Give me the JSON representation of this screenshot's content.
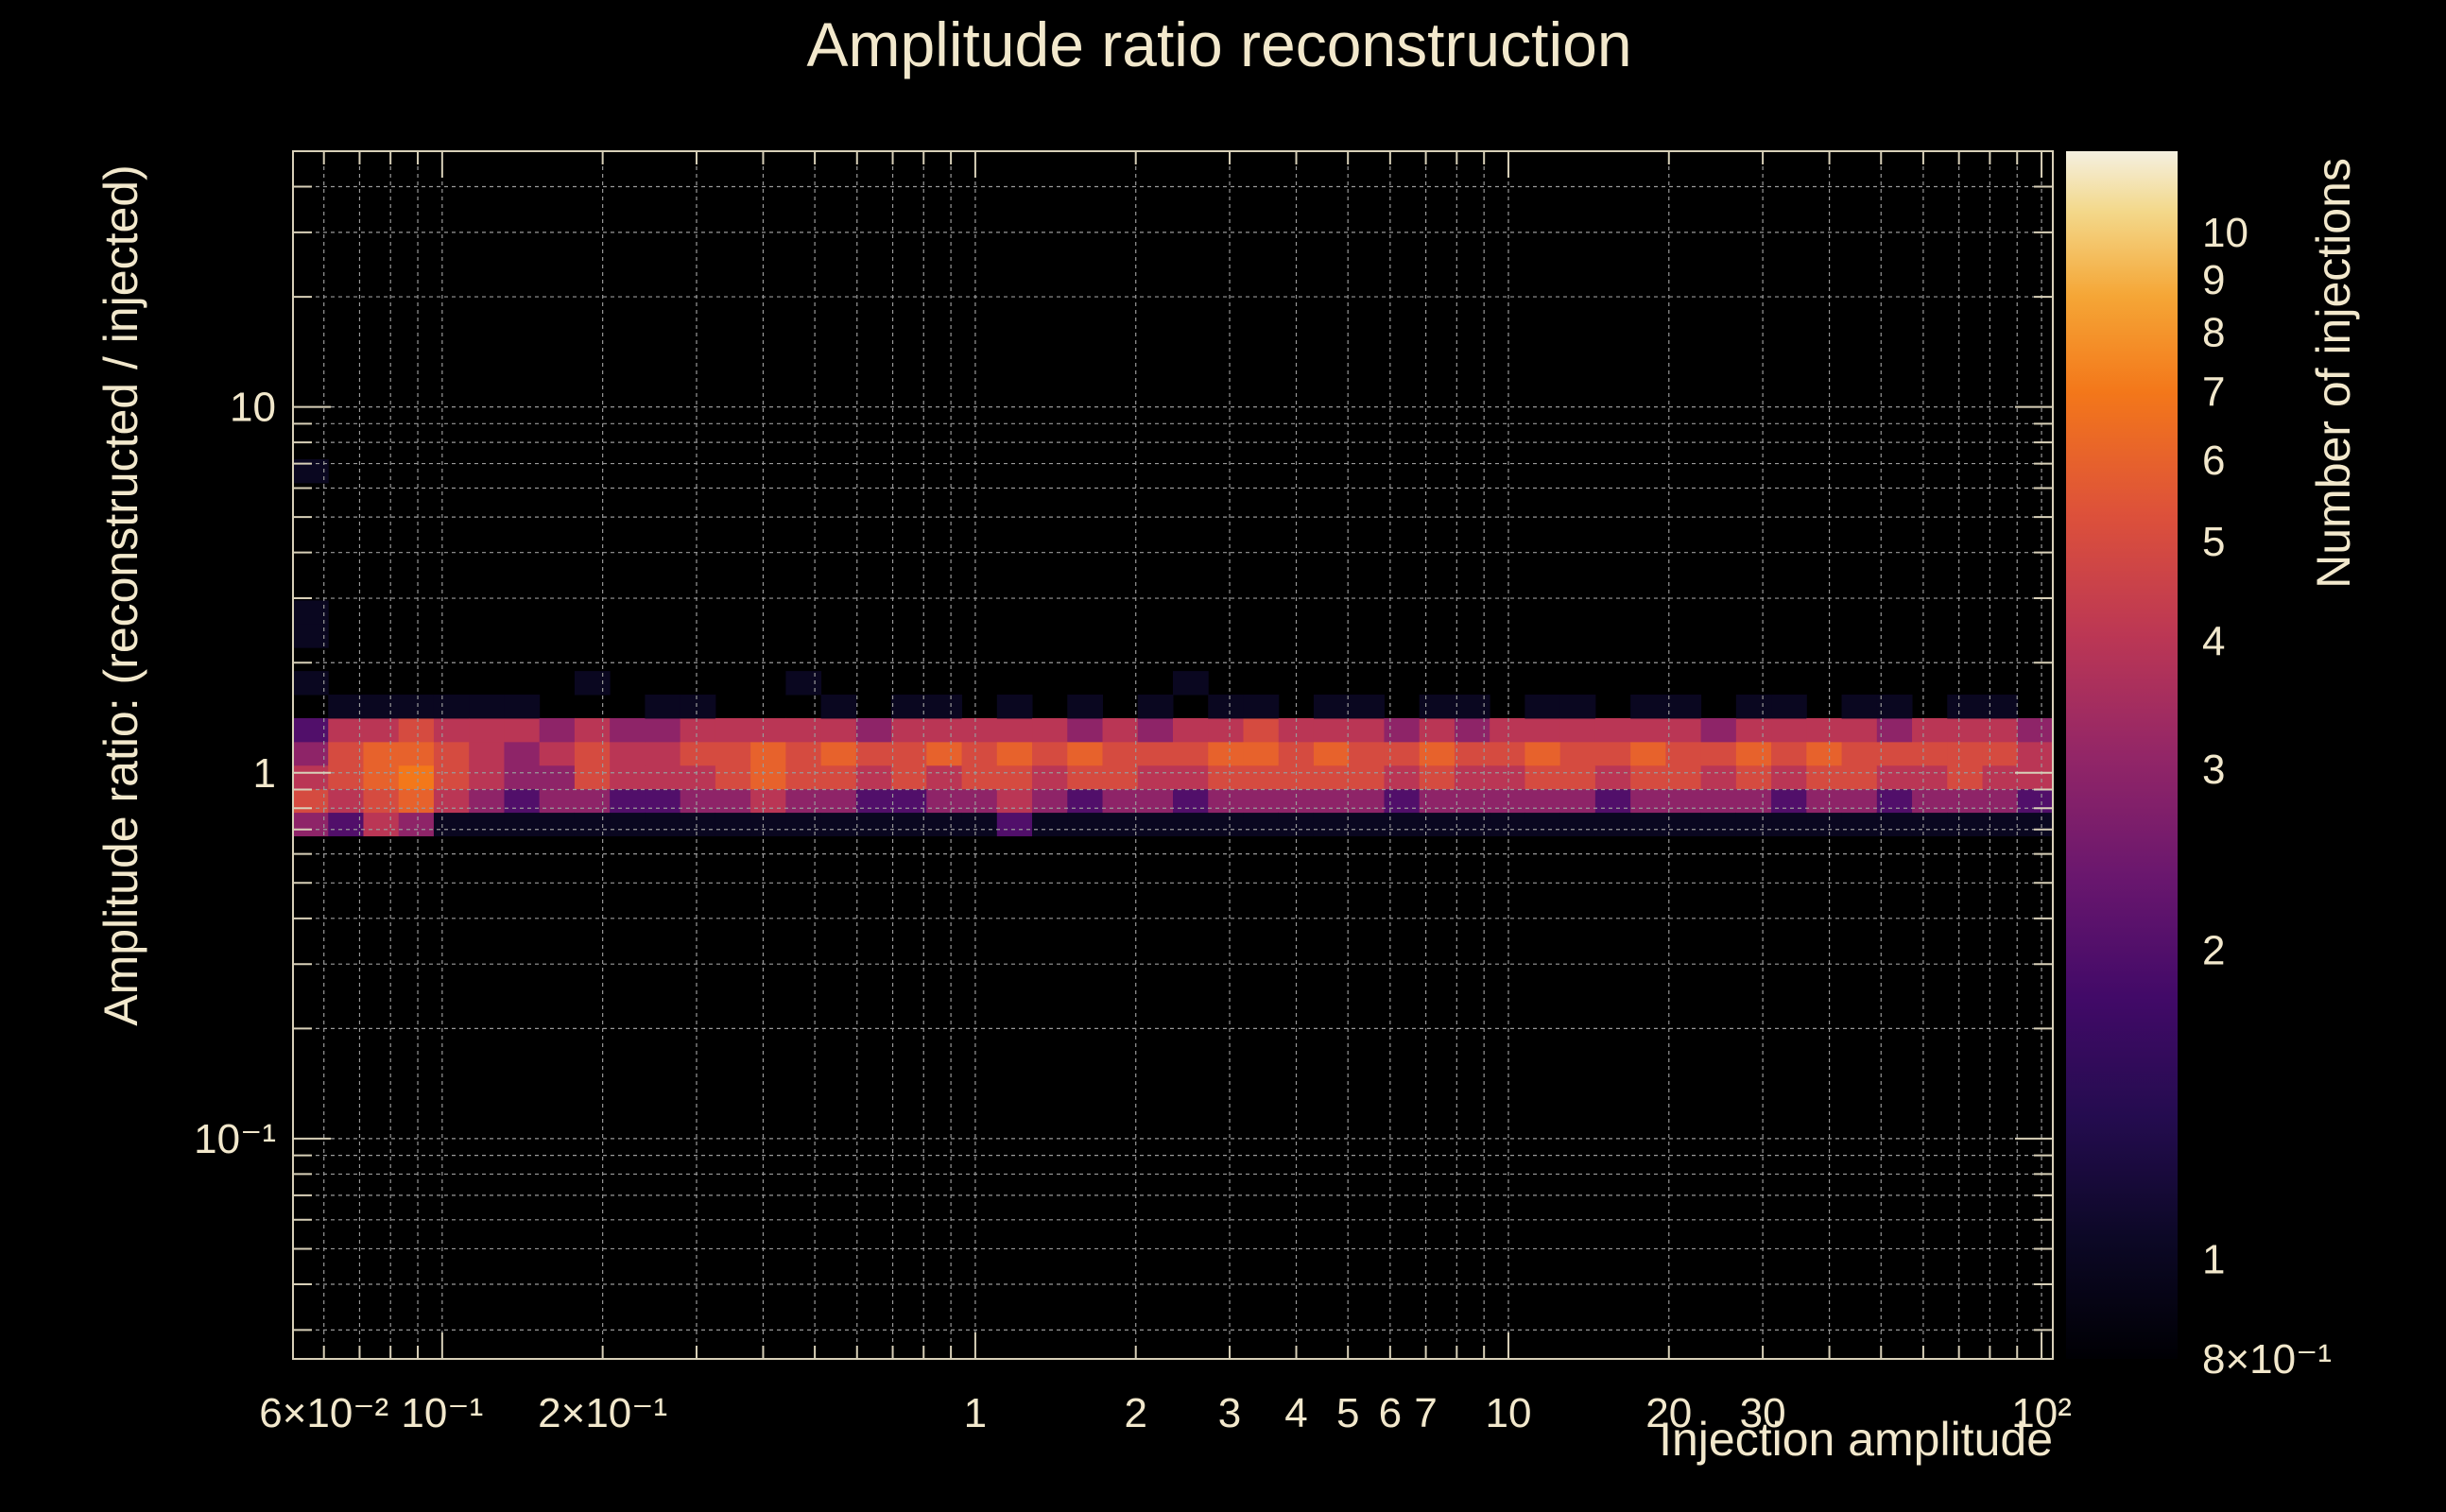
{
  "chart_data": {
    "type": "heatmap",
    "title": "Amplitude ratio reconstruction",
    "xlabel": "Injection amplitude",
    "ylabel": "Amplitude ratio: (reconstructed / injected)",
    "zlabel": "Number of injections",
    "x_scale": "log",
    "y_scale": "log",
    "z_scale": "log",
    "xlim": [
      0.0525,
      105
    ],
    "ylim": [
      0.025,
      50
    ],
    "zlim": [
      0.8,
      12
    ],
    "grid": true,
    "colormap": "inferno",
    "x_tick_labels": [
      {
        "value": 0.06,
        "text": "6×10⁻²"
      },
      {
        "value": 0.1,
        "text": "10⁻¹"
      },
      {
        "value": 0.2,
        "text": "2×10⁻¹"
      },
      {
        "value": 1,
        "text": "1"
      },
      {
        "value": 2,
        "text": "2"
      },
      {
        "value": 3,
        "text": "3"
      },
      {
        "value": 4,
        "text": "4"
      },
      {
        "value": 5,
        "text": "5"
      },
      {
        "value": 6,
        "text": "6"
      },
      {
        "value": 7,
        "text": "7"
      },
      {
        "value": 10,
        "text": "10"
      },
      {
        "value": 20,
        "text": "20"
      },
      {
        "value": 30,
        "text": "30"
      },
      {
        "value": 100,
        "text": "10²"
      }
    ],
    "y_tick_labels": [
      {
        "value": 0.1,
        "text": "10⁻¹"
      },
      {
        "value": 1,
        "text": "1"
      },
      {
        "value": 10,
        "text": "10"
      }
    ],
    "z_tick_labels": [
      {
        "value": 0.8,
        "text": "8×10⁻¹"
      },
      {
        "value": 1,
        "text": "1"
      },
      {
        "value": 2,
        "text": "2"
      },
      {
        "value": 3,
        "text": "3"
      },
      {
        "value": 4,
        "text": "4"
      },
      {
        "value": 5,
        "text": "5"
      },
      {
        "value": 6,
        "text": "6"
      },
      {
        "value": 7,
        "text": "7"
      },
      {
        "value": 8,
        "text": "8"
      },
      {
        "value": 9,
        "text": "9"
      },
      {
        "value": 10,
        "text": "10"
      }
    ],
    "n_x_bins": 50,
    "n_y_bins": 50,
    "cells": [
      [
        0,
        2,
        3
      ],
      [
        0,
        3,
        5
      ],
      [
        0,
        4,
        4
      ],
      [
        0,
        5,
        3
      ],
      [
        0,
        6,
        2
      ],
      [
        0,
        8,
        1
      ],
      [
        0,
        10,
        1
      ],
      [
        0,
        11,
        1
      ],
      [
        0,
        17,
        1
      ],
      [
        1,
        2,
        2
      ],
      [
        1,
        3,
        4
      ],
      [
        1,
        4,
        5
      ],
      [
        1,
        5,
        5
      ],
      [
        1,
        6,
        4
      ],
      [
        1,
        7,
        1
      ],
      [
        2,
        2,
        4
      ],
      [
        2,
        3,
        5
      ],
      [
        2,
        4,
        6
      ],
      [
        2,
        5,
        6
      ],
      [
        2,
        6,
        4
      ],
      [
        2,
        7,
        1
      ],
      [
        3,
        2,
        3
      ],
      [
        3,
        3,
        6
      ],
      [
        3,
        4,
        7
      ],
      [
        3,
        5,
        6
      ],
      [
        3,
        6,
        5
      ],
      [
        3,
        7,
        1
      ],
      [
        4,
        2,
        1
      ],
      [
        4,
        3,
        4
      ],
      [
        4,
        4,
        5
      ],
      [
        4,
        5,
        5
      ],
      [
        4,
        6,
        4
      ],
      [
        4,
        7,
        1
      ],
      [
        5,
        2,
        1
      ],
      [
        5,
        3,
        3
      ],
      [
        5,
        4,
        4
      ],
      [
        5,
        5,
        4
      ],
      [
        5,
        6,
        4
      ],
      [
        5,
        7,
        1
      ],
      [
        6,
        2,
        1
      ],
      [
        6,
        3,
        2
      ],
      [
        6,
        4,
        3
      ],
      [
        6,
        5,
        3
      ],
      [
        6,
        6,
        4
      ],
      [
        6,
        7,
        1
      ],
      [
        7,
        2,
        1
      ],
      [
        7,
        3,
        3
      ],
      [
        7,
        4,
        3
      ],
      [
        7,
        5,
        4
      ],
      [
        7,
        6,
        3
      ],
      [
        8,
        2,
        1
      ],
      [
        8,
        3,
        3
      ],
      [
        8,
        4,
        5
      ],
      [
        8,
        5,
        5
      ],
      [
        8,
        6,
        4
      ],
      [
        8,
        8,
        1
      ],
      [
        9,
        2,
        1
      ],
      [
        9,
        3,
        2
      ],
      [
        9,
        4,
        4
      ],
      [
        9,
        5,
        4
      ],
      [
        9,
        6,
        3
      ],
      [
        10,
        2,
        1
      ],
      [
        10,
        3,
        2
      ],
      [
        10,
        4,
        4
      ],
      [
        10,
        5,
        4
      ],
      [
        10,
        6,
        3
      ],
      [
        10,
        7,
        1
      ],
      [
        11,
        2,
        1
      ],
      [
        11,
        3,
        3
      ],
      [
        11,
        4,
        4
      ],
      [
        11,
        5,
        5
      ],
      [
        11,
        6,
        4
      ],
      [
        11,
        7,
        1
      ],
      [
        12,
        2,
        1
      ],
      [
        12,
        3,
        3
      ],
      [
        12,
        4,
        5
      ],
      [
        12,
        5,
        5
      ],
      [
        12,
        6,
        4
      ],
      [
        13,
        2,
        1
      ],
      [
        13,
        3,
        4
      ],
      [
        13,
        4,
        6
      ],
      [
        13,
        5,
        6
      ],
      [
        13,
        6,
        4
      ],
      [
        14,
        2,
        1
      ],
      [
        14,
        3,
        3
      ],
      [
        14,
        4,
        5
      ],
      [
        14,
        5,
        5
      ],
      [
        14,
        6,
        4
      ],
      [
        14,
        8,
        1
      ],
      [
        15,
        2,
        1
      ],
      [
        15,
        3,
        3
      ],
      [
        15,
        4,
        5
      ],
      [
        15,
        5,
        6
      ],
      [
        15,
        6,
        4
      ],
      [
        15,
        7,
        1
      ],
      [
        16,
        2,
        1
      ],
      [
        16,
        3,
        2
      ],
      [
        16,
        4,
        4
      ],
      [
        16,
        5,
        5
      ],
      [
        16,
        6,
        3
      ],
      [
        17,
        2,
        1
      ],
      [
        17,
        3,
        2
      ],
      [
        17,
        4,
        5
      ],
      [
        17,
        5,
        5
      ],
      [
        17,
        6,
        4
      ],
      [
        17,
        7,
        1
      ],
      [
        18,
        2,
        1
      ],
      [
        18,
        3,
        3
      ],
      [
        18,
        4,
        4
      ],
      [
        18,
        5,
        6
      ],
      [
        18,
        6,
        4
      ],
      [
        18,
        7,
        1
      ],
      [
        19,
        2,
        1
      ],
      [
        19,
        3,
        3
      ],
      [
        19,
        4,
        5
      ],
      [
        19,
        5,
        5
      ],
      [
        19,
        6,
        4
      ],
      [
        20,
        2,
        2
      ],
      [
        20,
        3,
        4
      ],
      [
        20,
        4,
        5
      ],
      [
        20,
        5,
        6
      ],
      [
        20,
        6,
        4
      ],
      [
        20,
        7,
        1
      ],
      [
        21,
        2,
        1
      ],
      [
        21,
        3,
        3
      ],
      [
        21,
        4,
        4
      ],
      [
        21,
        5,
        5
      ],
      [
        21,
        6,
        4
      ],
      [
        22,
        2,
        1
      ],
      [
        22,
        3,
        2
      ],
      [
        22,
        4,
        5
      ],
      [
        22,
        5,
        6
      ],
      [
        22,
        6,
        3
      ],
      [
        22,
        7,
        1
      ],
      [
        23,
        2,
        1
      ],
      [
        23,
        3,
        3
      ],
      [
        23,
        4,
        5
      ],
      [
        23,
        5,
        5
      ],
      [
        23,
        6,
        4
      ],
      [
        24,
        2,
        1
      ],
      [
        24,
        3,
        3
      ],
      [
        24,
        4,
        4
      ],
      [
        24,
        5,
        5
      ],
      [
        24,
        6,
        3
      ],
      [
        24,
        7,
        1
      ],
      [
        25,
        2,
        1
      ],
      [
        25,
        3,
        2
      ],
      [
        25,
        4,
        4
      ],
      [
        25,
        5,
        5
      ],
      [
        25,
        6,
        4
      ],
      [
        25,
        8,
        1
      ],
      [
        26,
        2,
        1
      ],
      [
        26,
        3,
        3
      ],
      [
        26,
        4,
        5
      ],
      [
        26,
        5,
        6
      ],
      [
        26,
        6,
        4
      ],
      [
        26,
        7,
        1
      ],
      [
        27,
        2,
        1
      ],
      [
        27,
        3,
        3
      ],
      [
        27,
        4,
        5
      ],
      [
        27,
        5,
        6
      ],
      [
        27,
        6,
        5
      ],
      [
        27,
        7,
        1
      ],
      [
        28,
        2,
        1
      ],
      [
        28,
        3,
        3
      ],
      [
        28,
        4,
        5
      ],
      [
        28,
        5,
        5
      ],
      [
        28,
        6,
        4
      ],
      [
        29,
        2,
        1
      ],
      [
        29,
        3,
        3
      ],
      [
        29,
        4,
        5
      ],
      [
        29,
        5,
        6
      ],
      [
        29,
        6,
        4
      ],
      [
        29,
        7,
        1
      ],
      [
        30,
        2,
        1
      ],
      [
        30,
        3,
        3
      ],
      [
        30,
        4,
        5
      ],
      [
        30,
        5,
        5
      ],
      [
        30,
        6,
        4
      ],
      [
        30,
        7,
        1
      ],
      [
        31,
        2,
        1
      ],
      [
        31,
        3,
        2
      ],
      [
        31,
        4,
        4
      ],
      [
        31,
        5,
        5
      ],
      [
        31,
        6,
        3
      ],
      [
        32,
        2,
        1
      ],
      [
        32,
        3,
        3
      ],
      [
        32,
        4,
        5
      ],
      [
        32,
        5,
        6
      ],
      [
        32,
        6,
        4
      ],
      [
        32,
        7,
        1
      ],
      [
        33,
        2,
        1
      ],
      [
        33,
        3,
        3
      ],
      [
        33,
        4,
        4
      ],
      [
        33,
        5,
        5
      ],
      [
        33,
        6,
        3
      ],
      [
        33,
        7,
        1
      ],
      [
        34,
        2,
        1
      ],
      [
        34,
        3,
        3
      ],
      [
        34,
        4,
        4
      ],
      [
        34,
        5,
        5
      ],
      [
        34,
        6,
        4
      ],
      [
        35,
        2,
        1
      ],
      [
        35,
        3,
        3
      ],
      [
        35,
        4,
        5
      ],
      [
        35,
        5,
        6
      ],
      [
        35,
        6,
        4
      ],
      [
        35,
        7,
        1
      ],
      [
        36,
        2,
        1
      ],
      [
        36,
        3,
        3
      ],
      [
        36,
        4,
        5
      ],
      [
        36,
        5,
        5
      ],
      [
        36,
        6,
        4
      ],
      [
        36,
        7,
        1
      ],
      [
        37,
        2,
        1
      ],
      [
        37,
        3,
        2
      ],
      [
        37,
        4,
        4
      ],
      [
        37,
        5,
        5
      ],
      [
        37,
        6,
        4
      ],
      [
        38,
        2,
        1
      ],
      [
        38,
        3,
        3
      ],
      [
        38,
        4,
        5
      ],
      [
        38,
        5,
        6
      ],
      [
        38,
        6,
        4
      ],
      [
        38,
        7,
        1
      ],
      [
        39,
        2,
        1
      ],
      [
        39,
        3,
        3
      ],
      [
        39,
        4,
        5
      ],
      [
        39,
        5,
        5
      ],
      [
        39,
        6,
        4
      ],
      [
        39,
        7,
        1
      ],
      [
        40,
        2,
        1
      ],
      [
        40,
        3,
        3
      ],
      [
        40,
        4,
        4
      ],
      [
        40,
        5,
        5
      ],
      [
        40,
        6,
        3
      ],
      [
        41,
        2,
        1
      ],
      [
        41,
        3,
        3
      ],
      [
        41,
        4,
        5
      ],
      [
        41,
        5,
        6
      ],
      [
        41,
        6,
        4
      ],
      [
        41,
        7,
        1
      ],
      [
        42,
        2,
        1
      ],
      [
        42,
        3,
        2
      ],
      [
        42,
        4,
        4
      ],
      [
        42,
        5,
        5
      ],
      [
        42,
        6,
        4
      ],
      [
        42,
        7,
        1
      ],
      [
        43,
        2,
        1
      ],
      [
        43,
        3,
        3
      ],
      [
        43,
        4,
        5
      ],
      [
        43,
        5,
        6
      ],
      [
        43,
        6,
        4
      ],
      [
        44,
        2,
        1
      ],
      [
        44,
        3,
        3
      ],
      [
        44,
        4,
        5
      ],
      [
        44,
        5,
        5
      ],
      [
        44,
        6,
        4
      ],
      [
        44,
        7,
        1
      ],
      [
        45,
        2,
        1
      ],
      [
        45,
        3,
        2
      ],
      [
        45,
        4,
        4
      ],
      [
        45,
        5,
        5
      ],
      [
        45,
        6,
        3
      ],
      [
        45,
        7,
        1
      ],
      [
        46,
        2,
        1
      ],
      [
        46,
        3,
        3
      ],
      [
        46,
        4,
        4
      ],
      [
        46,
        5,
        5
      ],
      [
        46,
        6,
        4
      ],
      [
        47,
        2,
        1
      ],
      [
        47,
        3,
        3
      ],
      [
        47,
        4,
        5
      ],
      [
        47,
        5,
        5
      ],
      [
        47,
        6,
        4
      ],
      [
        47,
        7,
        1
      ],
      [
        48,
        2,
        1
      ],
      [
        48,
        3,
        3
      ],
      [
        48,
        4,
        4
      ],
      [
        48,
        5,
        5
      ],
      [
        48,
        6,
        4
      ],
      [
        48,
        7,
        1
      ],
      [
        49,
        2,
        1
      ],
      [
        49,
        3,
        2
      ],
      [
        49,
        4,
        4
      ],
      [
        49,
        5,
        4
      ],
      [
        49,
        6,
        3
      ]
    ]
  }
}
